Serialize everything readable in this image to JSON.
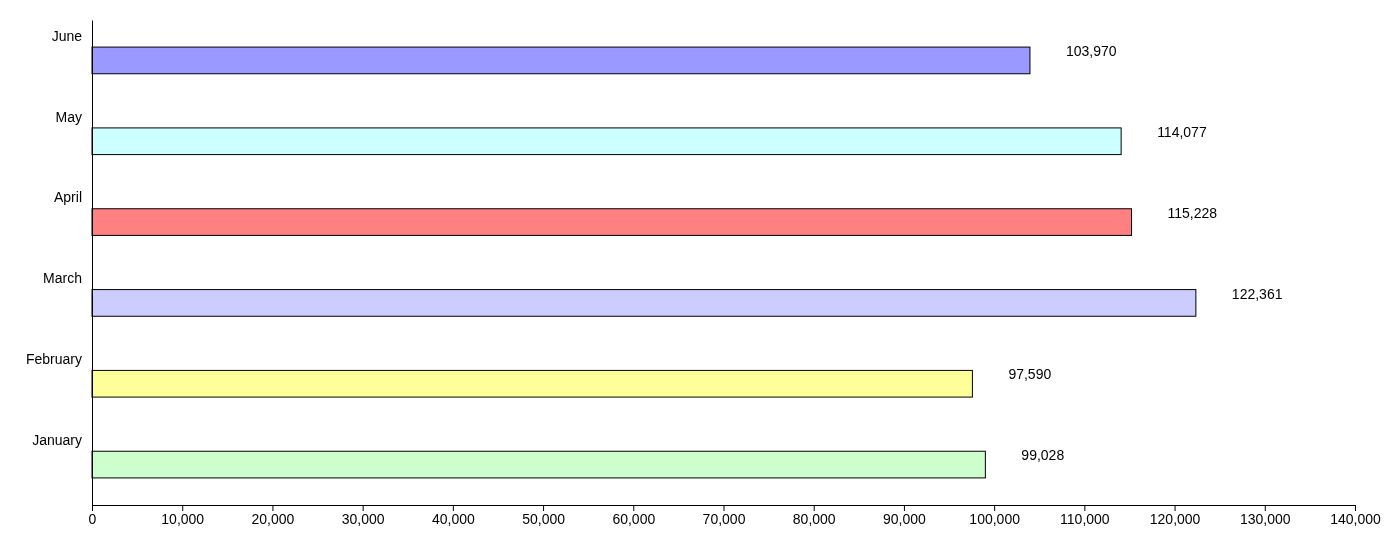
{
  "chart_data": {
    "type": "bar",
    "orientation": "horizontal",
    "categories": [
      "June",
      "May",
      "April",
      "March",
      "February",
      "January"
    ],
    "values": [
      103970,
      114077,
      115228,
      122361,
      97590,
      99028
    ],
    "colors": [
      "#9999ff",
      "#ccffff",
      "#ff8080",
      "#ccccff",
      "#ffff99",
      "#ccffcc"
    ],
    "value_labels": [
      "103,970",
      "114,077",
      "115,228",
      "122,361",
      "97,590",
      "99,028"
    ],
    "xlim": [
      0,
      140000
    ],
    "xticks": [
      0,
      {
        "value": 10000,
        "label": "10,000"
      },
      {
        "value": 20000,
        "label": "20,000"
      },
      {
        "value": 30000,
        "label": "30,000"
      },
      {
        "value": 40000,
        "label": "40,000"
      },
      {
        "value": 50000,
        "label": "50,000"
      },
      {
        "value": 60000,
        "label": "60,000"
      },
      {
        "value": 70000,
        "label": "70,000"
      },
      {
        "value": 80000,
        "label": "80,000"
      },
      {
        "value": 90000,
        "label": "90,000"
      },
      {
        "value": 100000,
        "label": "100,000"
      },
      {
        "value": 110000,
        "label": "110,000"
      },
      {
        "value": 120000,
        "label": "120,000"
      },
      {
        "value": 130000,
        "label": "130,000"
      },
      {
        "value": 140000,
        "label": "140,000"
      }
    ],
    "grid": false
  }
}
